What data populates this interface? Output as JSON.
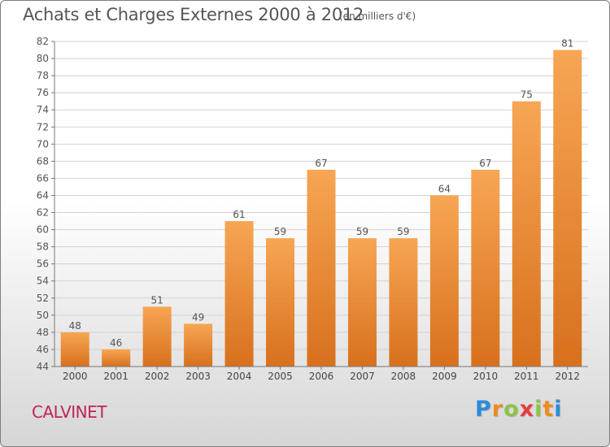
{
  "chart_data": {
    "type": "bar",
    "title": "Achats et Charges Externes 2000 à 2012",
    "subtitle": "(en milliers d'€)",
    "categories": [
      "2000",
      "2001",
      "2002",
      "2003",
      "2004",
      "2005",
      "2006",
      "2007",
      "2008",
      "2009",
      "2010",
      "2011",
      "2012"
    ],
    "values": [
      48,
      46,
      51,
      49,
      61,
      59,
      67,
      59,
      59,
      64,
      67,
      75,
      81
    ],
    "data_labels": [
      "48",
      "46",
      "51",
      "49",
      "61",
      "59",
      "67",
      "59",
      "59",
      "64",
      "67",
      "75",
      "81"
    ],
    "ylim": [
      44,
      82
    ],
    "yticks": [
      44,
      46,
      48,
      50,
      52,
      54,
      56,
      58,
      60,
      62,
      64,
      66,
      68,
      70,
      72,
      74,
      76,
      78,
      80,
      82
    ],
    "ytick_labels": [
      "44",
      "46",
      "48",
      "50",
      "52",
      "54",
      "56",
      "58",
      "60",
      "62",
      "64",
      "66",
      "68",
      "70",
      "72",
      "74",
      "76",
      "78",
      "80",
      "82"
    ],
    "grid": true,
    "colors": {
      "bar_light": "#f7a654",
      "bar_dark": "#d8701c",
      "grid": "#d2d2d2"
    }
  },
  "footer": {
    "town": "CALVINET",
    "logo_letters": [
      "P",
      "r",
      "o",
      "x",
      "i",
      "t",
      "i"
    ],
    "logo_colors": [
      "#2e8bd6",
      "#f08a1c",
      "#8bc34a",
      "#e83c3c",
      "#8bc34a",
      "#f08a1c",
      "#2e8bd6"
    ]
  }
}
